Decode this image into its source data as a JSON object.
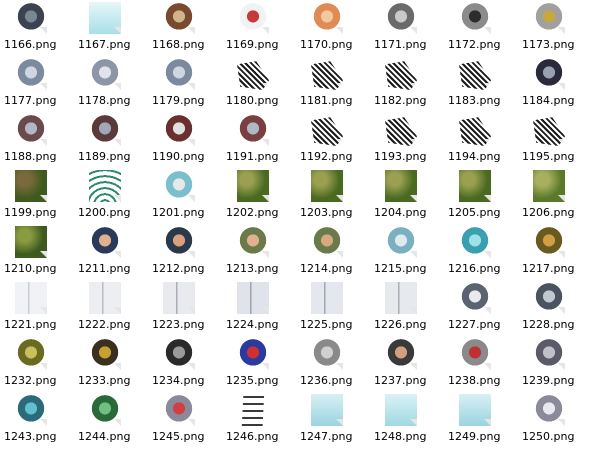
{
  "folder_view": {
    "files": [
      {
        "name": "1166.png",
        "icon": "metal-panel-icon",
        "colors": [
          "#3b4350",
          "#7a8694"
        ]
      },
      {
        "name": "1167.png",
        "icon": "ice-block-icon",
        "colors": [
          "#a8dfe6",
          "#e7f7fa"
        ]
      },
      {
        "name": "1168.png",
        "icon": "donut-rock-icon",
        "colors": [
          "#7a4a2e",
          "#d2b48c"
        ]
      },
      {
        "name": "1169.png",
        "icon": "stormtrooper-icon",
        "colors": [
          "#f2f2f2",
          "#c73a3a"
        ]
      },
      {
        "name": "1170.png",
        "icon": "orange-flag-icon",
        "colors": [
          "#e08a54",
          "#f2c8a0"
        ]
      },
      {
        "name": "1171.png",
        "icon": "grey-box-icon",
        "colors": [
          "#6a6a6a",
          "#c9c9c9"
        ]
      },
      {
        "name": "1172.png",
        "icon": "machine-part-icon",
        "colors": [
          "#8b8b8b",
          "#2c2c2c"
        ]
      },
      {
        "name": "1173.png",
        "icon": "machine-part-yellow-icon",
        "colors": [
          "#a0a0a0",
          "#c8a83a"
        ]
      },
      {
        "name": "1177.png",
        "icon": "metal-pipe-icon",
        "colors": [
          "#7c8aa0",
          "#d0d6df"
        ]
      },
      {
        "name": "1178.png",
        "icon": "metal-pipe-icon",
        "colors": [
          "#8c96a8",
          "#e0e4ea"
        ]
      },
      {
        "name": "1179.png",
        "icon": "metal-pipe-icon",
        "colors": [
          "#7c8aa0",
          "#d0d6df"
        ]
      },
      {
        "name": "1180.png",
        "icon": "dither-shadow-icon",
        "colors": [
          "#1a1a1a",
          "#ffffff"
        ]
      },
      {
        "name": "1181.png",
        "icon": "dither-shadow-icon",
        "colors": [
          "#1a1a1a",
          "#ffffff"
        ]
      },
      {
        "name": "1182.png",
        "icon": "dither-shadow-icon",
        "colors": [
          "#1a1a1a",
          "#ffffff"
        ]
      },
      {
        "name": "1183.png",
        "icon": "dither-shadow-icon",
        "colors": [
          "#1a1a1a",
          "#ffffff"
        ]
      },
      {
        "name": "1184.png",
        "icon": "tie-fighter-icon",
        "colors": [
          "#2a2a3a",
          "#9aa0b0"
        ]
      },
      {
        "name": "1188.png",
        "icon": "ship-wreck-icon",
        "colors": [
          "#6a4a4a",
          "#b0b8c8"
        ]
      },
      {
        "name": "1189.png",
        "icon": "ship-wreck-icon",
        "colors": [
          "#5a3a3a",
          "#a0a8b8"
        ]
      },
      {
        "name": "1190.png",
        "icon": "ship-wreck-icon",
        "colors": [
          "#6a3030",
          "#e0e0e0"
        ]
      },
      {
        "name": "1191.png",
        "icon": "ship-wreck-icon",
        "colors": [
          "#7a4040",
          "#b0b8c8"
        ]
      },
      {
        "name": "1192.png",
        "icon": "dither-shadow-icon",
        "colors": [
          "#1a1a1a",
          "#ffffff"
        ]
      },
      {
        "name": "1193.png",
        "icon": "dither-shadow-icon",
        "colors": [
          "#1a1a1a",
          "#ffffff"
        ]
      },
      {
        "name": "1194.png",
        "icon": "dither-shadow-icon",
        "colors": [
          "#1a1a1a",
          "#ffffff"
        ]
      },
      {
        "name": "1195.png",
        "icon": "dither-shadow-icon",
        "colors": [
          "#1a1a1a",
          "#ffffff"
        ]
      },
      {
        "name": "1199.png",
        "icon": "grass-tile-icon",
        "colors": [
          "#3e5a1e",
          "#7a6a3a"
        ]
      },
      {
        "name": "1200.png",
        "icon": "signal-waves-icon",
        "colors": [
          "#2a8a6a",
          "#ffffff"
        ]
      },
      {
        "name": "1201.png",
        "icon": "bones-icon",
        "colors": [
          "#7ac0cc",
          "#e8e8e8"
        ]
      },
      {
        "name": "1202.png",
        "icon": "jungle-tile-icon",
        "colors": [
          "#4a6a22",
          "#9aa050"
        ]
      },
      {
        "name": "1203.png",
        "icon": "jungle-tile-icon",
        "colors": [
          "#4a6a22",
          "#9aa050"
        ]
      },
      {
        "name": "1204.png",
        "icon": "jungle-tile-icon",
        "colors": [
          "#4a6a22",
          "#9aa050"
        ]
      },
      {
        "name": "1205.png",
        "icon": "jungle-tile-icon",
        "colors": [
          "#4a6a22",
          "#9aa050"
        ]
      },
      {
        "name": "1206.png",
        "icon": "jungle-tile-icon",
        "colors": [
          "#5a7a2a",
          "#a8b060"
        ]
      },
      {
        "name": "1210.png",
        "icon": "jungle-tile-icon",
        "colors": [
          "#3e5a1e",
          "#8a9a40"
        ]
      },
      {
        "name": "1211.png",
        "icon": "officer-icon",
        "colors": [
          "#2a3a5a",
          "#e0b090"
        ]
      },
      {
        "name": "1212.png",
        "icon": "officer-icon",
        "colors": [
          "#2a3a4a",
          "#d8a080"
        ]
      },
      {
        "name": "1213.png",
        "icon": "rebel-soldier-icon",
        "colors": [
          "#6a7a4a",
          "#e0b090"
        ]
      },
      {
        "name": "1214.png",
        "icon": "rebel-soldier-icon",
        "colors": [
          "#6a7a4a",
          "#d8a880"
        ]
      },
      {
        "name": "1215.png",
        "icon": "droid-cube-icon",
        "colors": [
          "#7ab0c0",
          "#e0e8f0"
        ]
      },
      {
        "name": "1216.png",
        "icon": "crystal-icon",
        "colors": [
          "#3aa0b0",
          "#a0e0e8"
        ]
      },
      {
        "name": "1217.png",
        "icon": "creature-icon",
        "colors": [
          "#6a5a20",
          "#d0a040"
        ]
      },
      {
        "name": "1221.png",
        "icon": "hull-panel-icon",
        "colors": [
          "#c8ccd4",
          "#f0f2f5"
        ]
      },
      {
        "name": "1222.png",
        "icon": "hull-panel-icon",
        "colors": [
          "#b8bcc4",
          "#eceef2"
        ]
      },
      {
        "name": "1223.png",
        "icon": "hull-panel-icon",
        "colors": [
          "#a8acb8",
          "#e8eaf0"
        ]
      },
      {
        "name": "1224.png",
        "icon": "hull-panel-icon",
        "colors": [
          "#9ca2ae",
          "#e0e4ea"
        ]
      },
      {
        "name": "1225.png",
        "icon": "hull-panel-icon",
        "colors": [
          "#a0a6b2",
          "#e4e8ee"
        ]
      },
      {
        "name": "1226.png",
        "icon": "hull-panel-icon",
        "colors": [
          "#a8aeb8",
          "#e6e9ee"
        ]
      },
      {
        "name": "1227.png",
        "icon": "speeder-icon",
        "colors": [
          "#5a6470",
          "#e8eaee"
        ]
      },
      {
        "name": "1228.png",
        "icon": "speeder-icon",
        "colors": [
          "#4a5460",
          "#c0c8d0"
        ]
      },
      {
        "name": "1232.png",
        "icon": "olive-machine-icon",
        "colors": [
          "#6a6a20",
          "#c8c060"
        ]
      },
      {
        "name": "1233.png",
        "icon": "circuit-board-icon",
        "colors": [
          "#3a3020",
          "#c8a030"
        ]
      },
      {
        "name": "1234.png",
        "icon": "chip-icon",
        "colors": [
          "#2a2a2a",
          "#9a9a9a"
        ]
      },
      {
        "name": "1235.png",
        "icon": "id-card-icon",
        "colors": [
          "#2a3aa0",
          "#d03030"
        ]
      },
      {
        "name": "1236.png",
        "icon": "keycard-icon",
        "colors": [
          "#8a8a8a",
          "#d0d0d0"
        ]
      },
      {
        "name": "1237.png",
        "icon": "portrait-panel-icon",
        "colors": [
          "#3a3a3a",
          "#d0a080"
        ]
      },
      {
        "name": "1238.png",
        "icon": "key-icon",
        "colors": [
          "#8a8a8a",
          "#c03030"
        ]
      },
      {
        "name": "1239.png",
        "icon": "robot-arm-icon",
        "colors": [
          "#5a5a6a",
          "#c0c0c8"
        ]
      },
      {
        "name": "1243.png",
        "icon": "blue-device-icon",
        "colors": [
          "#2a6a7a",
          "#60c0d0"
        ]
      },
      {
        "name": "1244.png",
        "icon": "green-walker-icon",
        "colors": [
          "#2a6a3a",
          "#70c080"
        ]
      },
      {
        "name": "1245.png",
        "icon": "control-panel-icon",
        "colors": [
          "#8a8a9a",
          "#d04040"
        ]
      },
      {
        "name": "1246.png",
        "icon": "ladder-icon",
        "colors": [
          "#3a3a3a",
          "#ffffff"
        ]
      },
      {
        "name": "1247.png",
        "icon": "ice-tile-icon",
        "colors": [
          "#9ad4e0",
          "#d8f0f4"
        ]
      },
      {
        "name": "1248.png",
        "icon": "ice-tile-icon",
        "colors": [
          "#a0d8e2",
          "#daf2f6"
        ]
      },
      {
        "name": "1249.png",
        "icon": "ice-tile-icon",
        "colors": [
          "#9ad4e0",
          "#d8f0f4"
        ]
      },
      {
        "name": "1250.png",
        "icon": "probe-droid-icon",
        "colors": [
          "#8a8a9a",
          "#e8e8f0"
        ]
      }
    ]
  }
}
